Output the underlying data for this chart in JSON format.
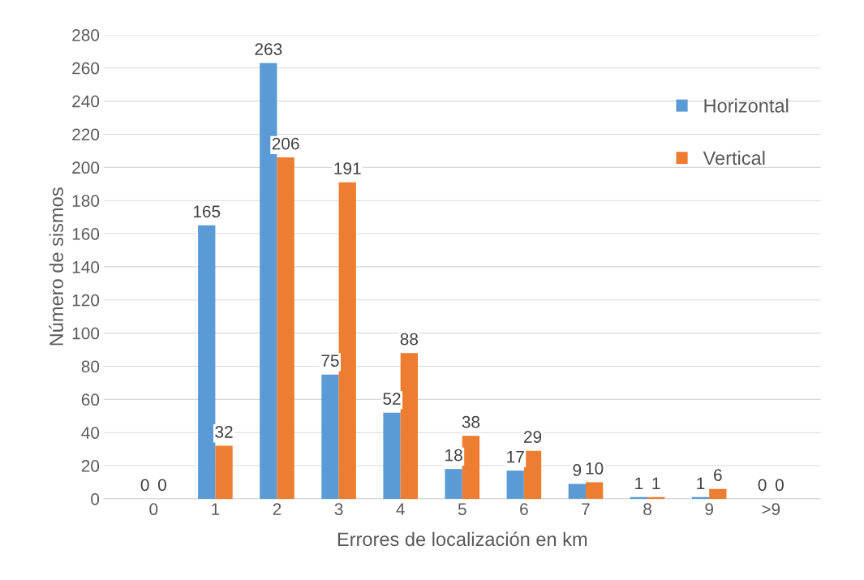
{
  "chart_data": {
    "type": "bar",
    "xlabel": "Errores de localización en km",
    "ylabel": "Número de sismos",
    "categories": [
      "0",
      "1",
      "2",
      "3",
      "4",
      "5",
      "6",
      "7",
      "8",
      "9",
      ">9"
    ],
    "series": [
      {
        "name": "Horizontal",
        "color": "#5b9bd5",
        "values": [
          0,
          165,
          263,
          75,
          52,
          18,
          17,
          9,
          1,
          1,
          0
        ]
      },
      {
        "name": "Vertical",
        "color": "#ed7d31",
        "values": [
          0,
          32,
          206,
          191,
          88,
          38,
          29,
          10,
          1,
          6,
          0
        ]
      }
    ],
    "ylim": [
      0,
      280
    ],
    "yticks": [
      0,
      20,
      40,
      60,
      80,
      100,
      120,
      140,
      160,
      180,
      200,
      220,
      240,
      260,
      280
    ],
    "grid": "y",
    "legend": "top right",
    "data_labels": true
  }
}
